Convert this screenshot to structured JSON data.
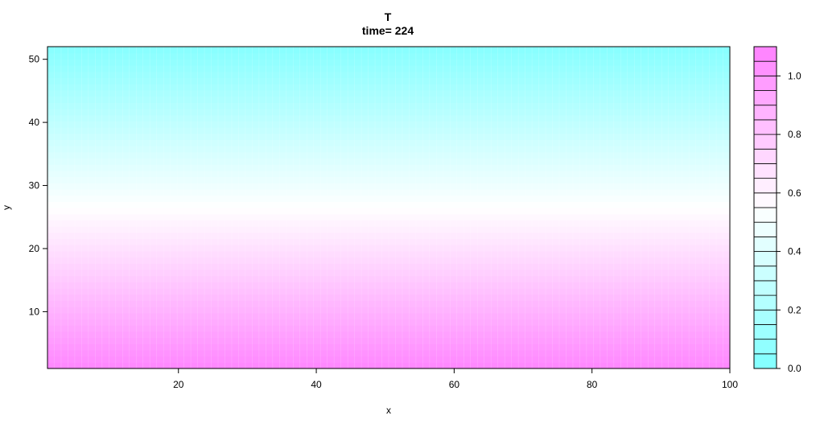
{
  "chart_data": {
    "type": "heatmap",
    "title": "T",
    "subtitle": "time= 224",
    "xlabel": "x",
    "ylabel": "y",
    "xlim": [
      1,
      100
    ],
    "ylim": [
      1,
      52
    ],
    "x_ticks": [
      20,
      40,
      60,
      80,
      100
    ],
    "y_ticks": [
      10,
      20,
      30,
      40,
      50
    ],
    "rows": 52,
    "cols": 100,
    "row_values_bottom_to_top": [
      1.06,
      1.04,
      1.02,
      1.0,
      0.98,
      0.96,
      0.94,
      0.92,
      0.9,
      0.88,
      0.86,
      0.84,
      0.82,
      0.8,
      0.78,
      0.76,
      0.74,
      0.72,
      0.7,
      0.68,
      0.66,
      0.64,
      0.62,
      0.6,
      0.58,
      0.56,
      0.54,
      0.52,
      0.5,
      0.48,
      0.46,
      0.44,
      0.42,
      0.4,
      0.38,
      0.36,
      0.34,
      0.32,
      0.3,
      0.28,
      0.26,
      0.24,
      0.22,
      0.2,
      0.18,
      0.16,
      0.14,
      0.12,
      0.1,
      0.08,
      0.06,
      0.04
    ],
    "colorbar": {
      "min": 0.0,
      "max": 1.1,
      "step": 0.05,
      "tick_values": [
        0.0,
        0.2,
        0.4,
        0.6,
        0.8,
        1.0
      ],
      "tick_labels": [
        "0.0",
        "0.2",
        "0.4",
        "0.6",
        "0.8",
        "1.0"
      ],
      "low_color": "#80ffff",
      "mid_color": "#ffffff",
      "high_color": "#ff80ff",
      "mid_value": 0.55
    }
  }
}
